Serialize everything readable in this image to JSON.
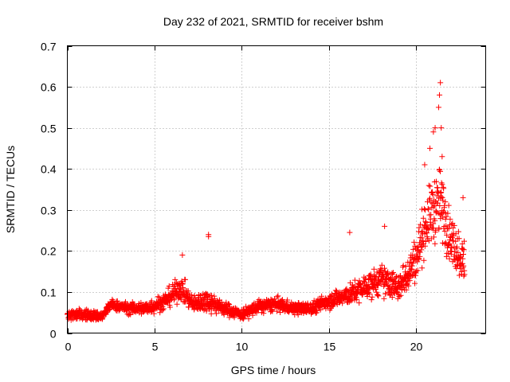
{
  "chart_data": {
    "type": "scatter",
    "title": "Day 232 of 2021, SRMTID for receiver bshm",
    "xlabel": "GPS time / hours",
    "ylabel": "SRMTID / TECUs",
    "xlim": [
      0,
      24
    ],
    "ylim": [
      0,
      0.7
    ],
    "x_ticks": [
      0,
      5,
      10,
      15,
      20
    ],
    "x_tick_labels": [
      "0",
      "5",
      "10",
      "15",
      "20"
    ],
    "y_ticks": [
      0,
      0.1,
      0.2,
      0.3,
      0.4,
      0.5,
      0.6,
      0.7
    ],
    "y_tick_labels": [
      "0",
      "0.1",
      "0.2",
      "0.3",
      "0.4",
      "0.5",
      "0.6",
      "0.7"
    ],
    "grid": true,
    "marker": "+",
    "series": [
      {
        "name": "SRMTID",
        "color": "#ff0000",
        "envelope_note": "estimated typical level and spread vs time (hours, TECU)",
        "profile": [
          {
            "t": 0.0,
            "level": 0.045,
            "spread": 0.018
          },
          {
            "t": 1.0,
            "level": 0.045,
            "spread": 0.02
          },
          {
            "t": 2.0,
            "level": 0.04,
            "spread": 0.018
          },
          {
            "t": 2.5,
            "level": 0.07,
            "spread": 0.018
          },
          {
            "t": 3.5,
            "level": 0.06,
            "spread": 0.02
          },
          {
            "t": 4.5,
            "level": 0.06,
            "spread": 0.025
          },
          {
            "t": 5.5,
            "level": 0.075,
            "spread": 0.03
          },
          {
            "t": 6.5,
            "level": 0.11,
            "spread": 0.045
          },
          {
            "t": 7.2,
            "level": 0.07,
            "spread": 0.03
          },
          {
            "t": 8.0,
            "level": 0.08,
            "spread": 0.04
          },
          {
            "t": 9.0,
            "level": 0.06,
            "spread": 0.025
          },
          {
            "t": 10.0,
            "level": 0.045,
            "spread": 0.02
          },
          {
            "t": 11.0,
            "level": 0.065,
            "spread": 0.025
          },
          {
            "t": 12.0,
            "level": 0.07,
            "spread": 0.025
          },
          {
            "t": 13.0,
            "level": 0.06,
            "spread": 0.022
          },
          {
            "t": 14.0,
            "level": 0.06,
            "spread": 0.022
          },
          {
            "t": 15.0,
            "level": 0.08,
            "spread": 0.03
          },
          {
            "t": 16.0,
            "level": 0.09,
            "spread": 0.035
          },
          {
            "t": 17.0,
            "level": 0.11,
            "spread": 0.045
          },
          {
            "t": 18.0,
            "level": 0.13,
            "spread": 0.055
          },
          {
            "t": 19.0,
            "level": 0.11,
            "spread": 0.05
          },
          {
            "t": 20.0,
            "level": 0.18,
            "spread": 0.08
          },
          {
            "t": 20.5,
            "level": 0.26,
            "spread": 0.1
          },
          {
            "t": 21.0,
            "level": 0.3,
            "spread": 0.12
          },
          {
            "t": 21.4,
            "level": 0.32,
            "spread": 0.13
          },
          {
            "t": 22.0,
            "level": 0.23,
            "spread": 0.09
          },
          {
            "t": 22.8,
            "level": 0.17,
            "spread": 0.08
          }
        ],
        "notable_points": [
          {
            "x": 6.6,
            "y": 0.19
          },
          {
            "x": 8.1,
            "y": 0.24
          },
          {
            "x": 8.1,
            "y": 0.235
          },
          {
            "x": 16.2,
            "y": 0.245
          },
          {
            "x": 18.2,
            "y": 0.26
          },
          {
            "x": 20.5,
            "y": 0.41
          },
          {
            "x": 20.8,
            "y": 0.45
          },
          {
            "x": 21.0,
            "y": 0.49
          },
          {
            "x": 21.1,
            "y": 0.5
          },
          {
            "x": 21.3,
            "y": 0.55
          },
          {
            "x": 21.35,
            "y": 0.58
          },
          {
            "x": 21.4,
            "y": 0.61
          },
          {
            "x": 21.45,
            "y": 0.5
          },
          {
            "x": 21.5,
            "y": 0.43
          },
          {
            "x": 22.7,
            "y": 0.33
          }
        ]
      }
    ]
  }
}
